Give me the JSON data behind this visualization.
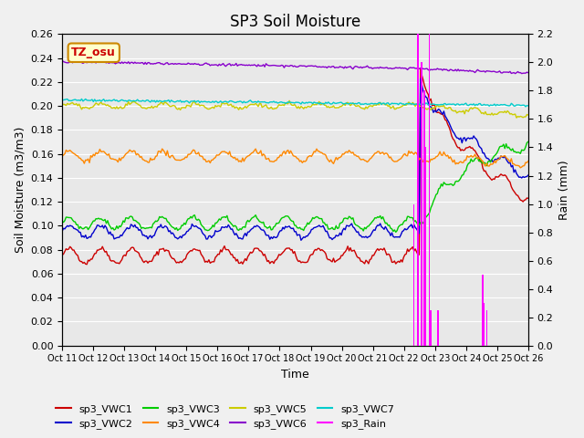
{
  "title": "SP3 Soil Moisture",
  "xlabel": "Time",
  "ylabel_left": "Soil Moisture (m3/m3)",
  "ylabel_right": "Rain (mm)",
  "ylim_left": [
    0.0,
    0.26
  ],
  "ylim_right": [
    0.0,
    2.2
  ],
  "yticks_left": [
    0.0,
    0.02,
    0.04,
    0.06,
    0.08,
    0.1,
    0.12,
    0.14,
    0.16,
    0.18,
    0.2,
    0.22,
    0.24,
    0.26
  ],
  "yticks_right": [
    0.0,
    0.2,
    0.4,
    0.6,
    0.8,
    1.0,
    1.2,
    1.4,
    1.6,
    1.8,
    2.0,
    2.2
  ],
  "xtick_labels": [
    "Oct 11",
    "Oct 12",
    "Oct 13",
    "Oct 14",
    "Oct 15",
    "Oct 16",
    "Oct 17",
    "Oct 18",
    "Oct 19",
    "Oct 20",
    "Oct 21",
    "Oct 22",
    "Oct 23",
    "Oct 24",
    "Oct 25",
    "Oct 26"
  ],
  "background_color": "#e8e8e8",
  "grid_color": "#ffffff",
  "annotation_text": "TZ_osu",
  "annotation_bg": "#ffffcc",
  "annotation_border": "#cc8800",
  "series_colors": {
    "VWC1": "#cc0000",
    "VWC2": "#0000cc",
    "VWC3": "#00cc00",
    "VWC4": "#ff8800",
    "VWC5": "#cccc00",
    "VWC6": "#8800cc",
    "VWC7": "#00cccc",
    "Rain": "#ff00ff"
  },
  "n_days": 15,
  "n_labels": 16
}
